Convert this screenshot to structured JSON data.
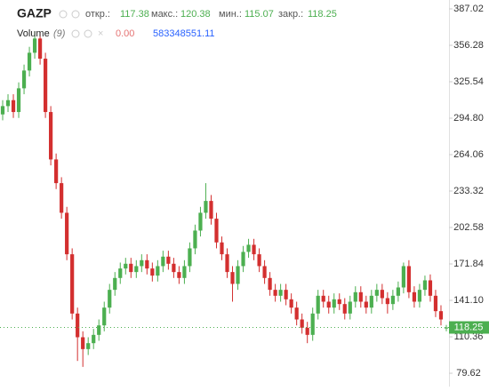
{
  "chart_data": {
    "type": "candlestick",
    "title": "GAZP",
    "header": {
      "open_label": "откр.:",
      "open": 117.38,
      "high_label": "макс.:",
      "high": 120.38,
      "low_label": "мин.:",
      "low": 115.07,
      "close_label": "закр.:",
      "close": 118.25
    },
    "volume": {
      "name": "Volume",
      "period": "(9)",
      "value": "0.00",
      "average": "583348551.11"
    },
    "up_color": "#4caf50",
    "down_color": "#d32f2f",
    "open": [
      298,
      305,
      310,
      300,
      320,
      335,
      350,
      362,
      345,
      300,
      260,
      240,
      215,
      180,
      130,
      110,
      100,
      105,
      112,
      120,
      135,
      150,
      160,
      168,
      172,
      165,
      170,
      175,
      168,
      162,
      170,
      178,
      172,
      165,
      160,
      170,
      185,
      200,
      215,
      225,
      210,
      190,
      180,
      165,
      155,
      170,
      182,
      188,
      180,
      170,
      160,
      150,
      145,
      150,
      142,
      135,
      125,
      118,
      112,
      130,
      145,
      140,
      135,
      142,
      138,
      130,
      140,
      148,
      140,
      135,
      145,
      150,
      143,
      138,
      145,
      152,
      170,
      148,
      140,
      150,
      158,
      145,
      132,
      117.38
    ],
    "high": [
      310,
      315,
      315,
      325,
      340,
      355,
      368,
      367,
      350,
      305,
      265,
      245,
      220,
      185,
      135,
      115,
      110,
      117,
      125,
      140,
      155,
      165,
      173,
      177,
      177,
      175,
      180,
      180,
      173,
      175,
      183,
      183,
      177,
      170,
      175,
      190,
      205,
      220,
      240,
      230,
      215,
      195,
      185,
      170,
      175,
      187,
      193,
      193,
      185,
      175,
      165,
      155,
      155,
      155,
      147,
      140,
      130,
      123,
      135,
      150,
      150,
      145,
      147,
      147,
      143,
      145,
      153,
      153,
      145,
      150,
      155,
      155,
      148,
      150,
      157,
      173,
      175,
      153,
      155,
      162,
      163,
      150,
      137,
      120.38
    ],
    "low": [
      293,
      300,
      295,
      295,
      315,
      330,
      345,
      340,
      295,
      255,
      235,
      210,
      175,
      125,
      90,
      85,
      95,
      100,
      107,
      115,
      130,
      145,
      155,
      163,
      160,
      160,
      165,
      163,
      157,
      157,
      165,
      167,
      160,
      155,
      155,
      165,
      180,
      195,
      210,
      205,
      185,
      175,
      160,
      140,
      150,
      165,
      177,
      175,
      165,
      155,
      145,
      140,
      140,
      137,
      130,
      120,
      113,
      105,
      107,
      125,
      135,
      130,
      130,
      133,
      125,
      125,
      135,
      135,
      130,
      130,
      140,
      138,
      130,
      133,
      140,
      147,
      143,
      135,
      135,
      145,
      140,
      127,
      120,
      115.07
    ],
    "close": [
      305,
      310,
      300,
      320,
      335,
      350,
      362,
      345,
      300,
      260,
      240,
      215,
      180,
      130,
      110,
      100,
      105,
      112,
      120,
      135,
      150,
      160,
      168,
      172,
      165,
      170,
      175,
      168,
      162,
      170,
      178,
      172,
      165,
      160,
      170,
      185,
      200,
      215,
      225,
      210,
      190,
      180,
      165,
      155,
      170,
      182,
      188,
      180,
      170,
      160,
      150,
      145,
      150,
      142,
      135,
      125,
      118,
      112,
      130,
      145,
      140,
      135,
      142,
      138,
      130,
      140,
      148,
      140,
      135,
      145,
      150,
      143,
      138,
      145,
      152,
      170,
      148,
      140,
      150,
      158,
      145,
      132,
      125,
      118.25
    ],
    "ylim": [
      68.4,
      394.5
    ],
    "yticks": [
      387.02,
      356.28,
      325.54,
      {
        "value": 294.8,
        "label": "294.80"
      },
      264.06,
      233.32,
      202.58,
      171.84,
      {
        "value": 141.1,
        "label": "141.10"
      },
      110.36,
      79.62
    ]
  }
}
